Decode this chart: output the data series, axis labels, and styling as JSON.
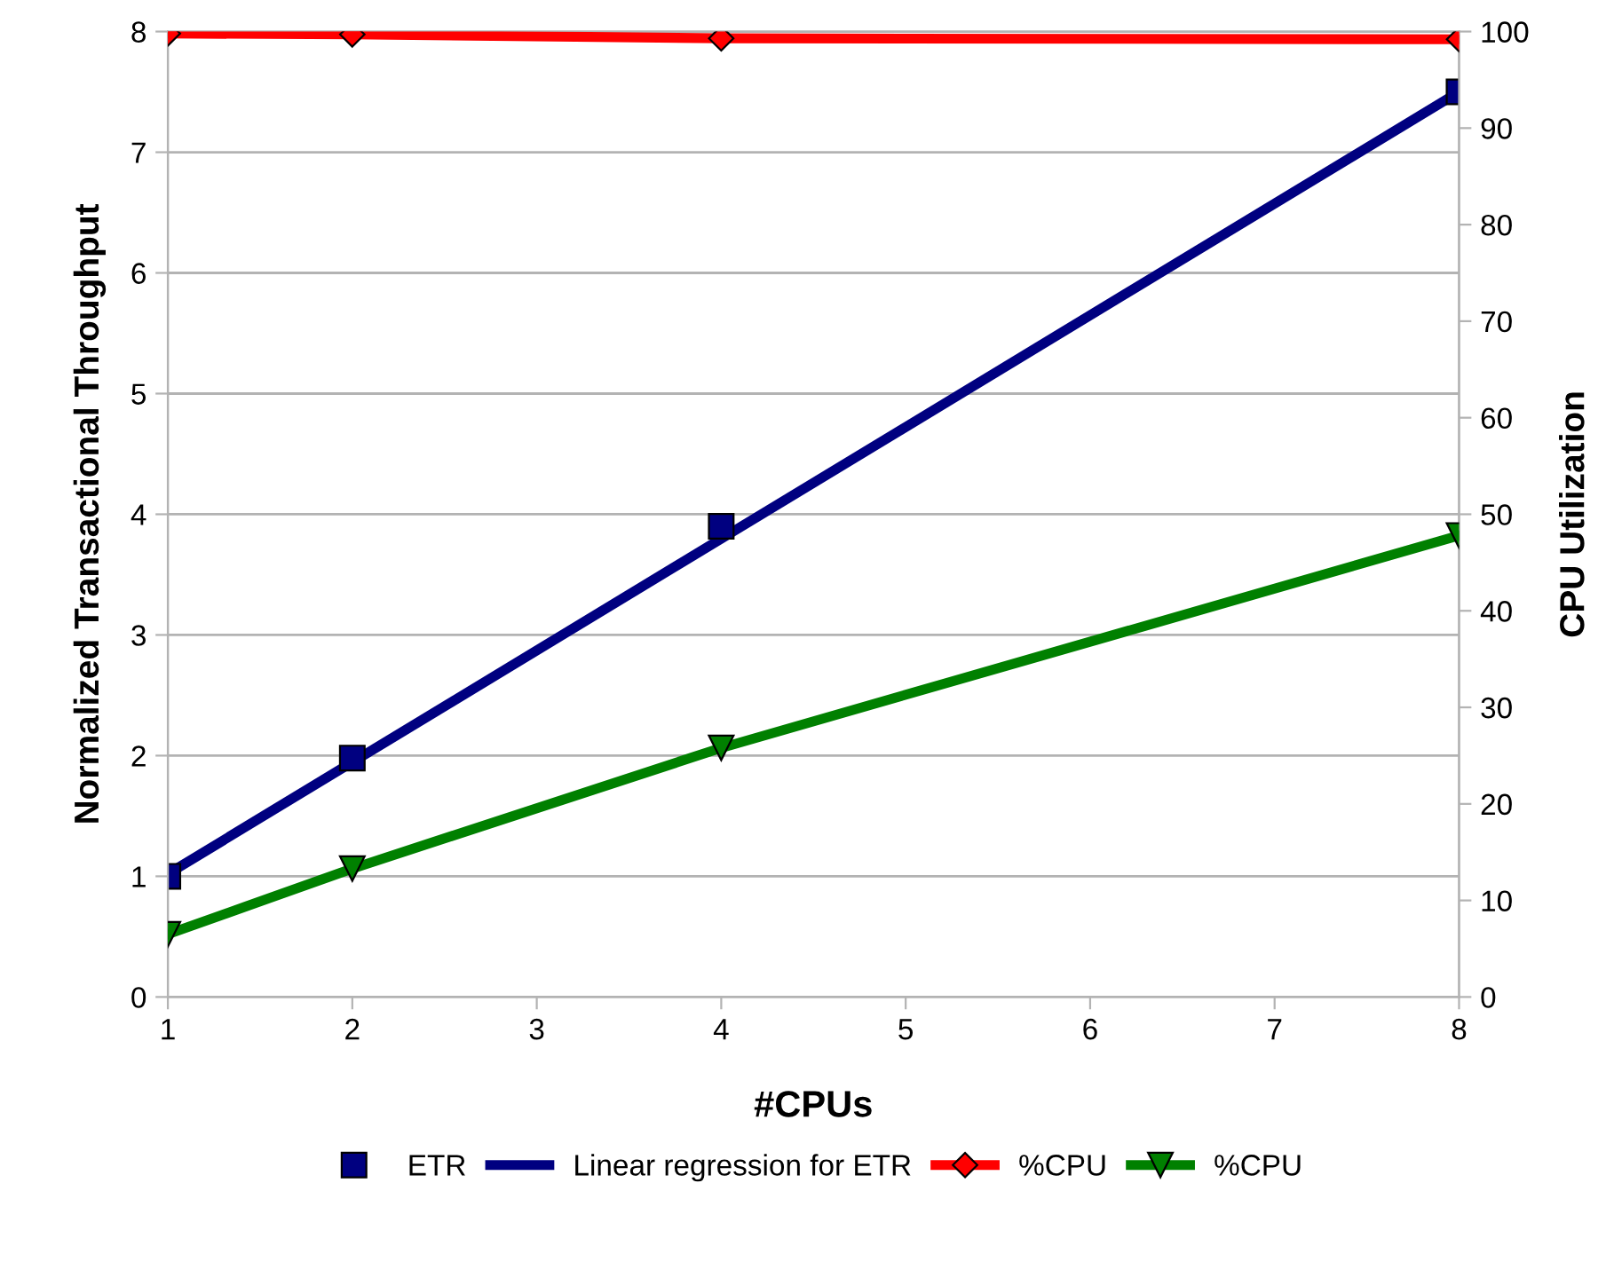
{
  "chart_data": {
    "type": "line",
    "xlabel": "#CPUs",
    "ylabel": "Normalized Transactional Throughput",
    "y2label": "CPU Utilization",
    "xlim": [
      1,
      8
    ],
    "xticks": [
      1,
      2,
      3,
      4,
      5,
      6,
      7,
      8
    ],
    "ylim": [
      0,
      8
    ],
    "yticks": [
      0,
      1,
      2,
      3,
      4,
      5,
      6,
      7,
      8
    ],
    "y2lim": [
      0,
      100
    ],
    "y2ticks": [
      0,
      10,
      20,
      30,
      40,
      50,
      60,
      70,
      80,
      90,
      100
    ],
    "grid": "y",
    "legend": "bottom",
    "series": [
      {
        "name": "ETR",
        "type": "scatter",
        "color": "#000080",
        "marker": "square",
        "x": [
          1,
          2,
          4,
          8
        ],
        "values": [
          1.0,
          1.98,
          3.9,
          7.5
        ]
      },
      {
        "name": "Linear regression for ETR",
        "color": "#000080",
        "marker": "none",
        "x": [
          1,
          8
        ],
        "values": [
          1.02,
          7.5
        ]
      },
      {
        "name": "%CPU",
        "color": "#ff0000",
        "marker": "diamond",
        "axis": "y2",
        "x": [
          1,
          2,
          4,
          8
        ],
        "values": [
          99.8,
          99.7,
          99.3,
          99.2
        ]
      },
      {
        "name": "%CPU",
        "color": "#008000",
        "marker": "triangle",
        "axis": "y2",
        "x": [
          1,
          2,
          4,
          8
        ],
        "values": [
          6.5,
          13.3,
          25.8,
          47.8
        ]
      }
    ]
  }
}
